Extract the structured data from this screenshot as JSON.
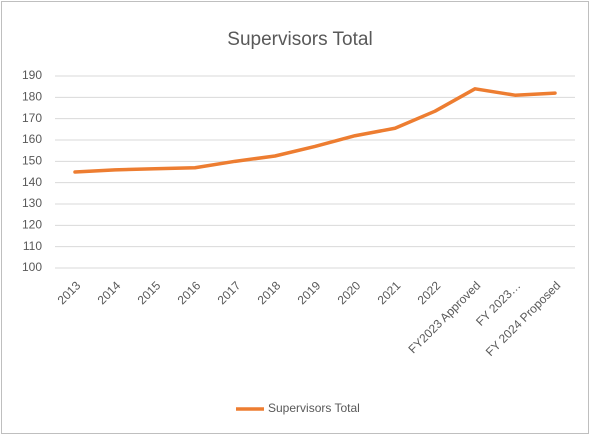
{
  "chart_data": {
    "type": "line",
    "title": "Supervisors Total",
    "categories": [
      "2013",
      "2014",
      "2015",
      "2016",
      "2017",
      "2018",
      "2019",
      "2020",
      "2021",
      "2022",
      "FY2023 Approved",
      "FY 2023…",
      "FY 2024 Proposed"
    ],
    "series": [
      {
        "name": "Supervisors Total",
        "color": "#ed7d31",
        "values": [
          145,
          146,
          146.5,
          147,
          150,
          152.5,
          157,
          162,
          165.5,
          173.5,
          184,
          181,
          182
        ]
      }
    ],
    "ylim": [
      100,
      190
    ],
    "yticks": [
      100,
      110,
      120,
      130,
      140,
      150,
      160,
      170,
      180,
      190
    ],
    "grid": true
  }
}
